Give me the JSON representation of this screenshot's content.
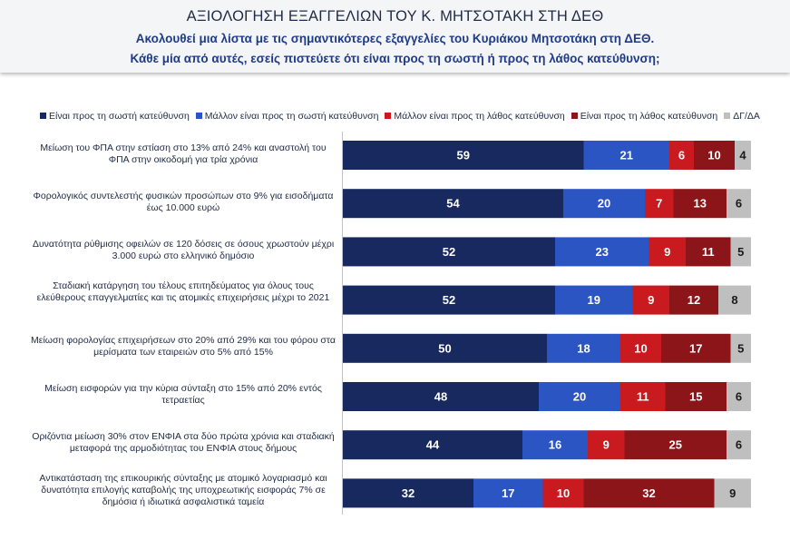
{
  "header": {
    "title": "ΑΞΙΟΛΟΓΗΣΗ ΕΞΑΓΓΕΛΙΩΝ ΤΟΥ Κ. ΜΗΤΣΟΤΑΚΗ ΣΤΗ ΔΕΘ",
    "subtitle_line1": "Ακολουθεί μια λίστα με τις σημαντικότερες εξαγγελίες του Κυριάκου Μητσοτάκη στη ΔΕΘ.",
    "subtitle_line2": "Κάθε μία από αυτές, εσείς πιστεύετε ότι είναι προς τη σωστή ή προς τη λάθος κατεύθυνση;"
  },
  "chart_data": {
    "type": "bar",
    "orientation": "horizontal",
    "stacked": true,
    "legend_position": "top",
    "xlim": [
      0,
      100
    ],
    "categories": [
      "Μείωση του ΦΠΑ στην εστίαση στο 13% από 24% και αναστολή του ΦΠΑ στην οικοδομή για τρία χρόνια",
      "Φορολογικός συντελεστής φυσικών προσώπων στο 9% για εισοδήματα έως 10.000 ευρώ",
      "Δυνατότητα ρύθμισης οφειλών σε 120 δόσεις σε όσους χρωστούν μέχρι 3.000 ευρώ στο ελληνικό δημόσιο",
      "Σταδιακή κατάργηση του τέλους επιτηδεύματος για όλους τους ελεύθερους επαγγελματίες και τις ατομικές επιχειρήσεις μέχρι το 2021",
      "Μείωση φορολογίας επιχειρήσεων στο 20% από 29% και του φόρου στα μερίσματα των εταιρειών στο 5% από 15%",
      "Μείωση εισφορών για την κύρια σύνταξη στο 15% από 20% εντός τετραετίας",
      "Οριζόντια μείωση 30% στον ΕΝΦΙΑ στα δύο πρώτα χρόνια και σταδιακή μεταφορά της αρμοδιότητας του ΕΝΦΙΑ στους δήμους",
      "Αντικατάσταση της επικουρικής σύνταξης με ατομικό λογαριασμό και δυνατότητα επιλογής καταβολής της υποχρεωτικής εισφοράς 7% σε δημόσια ή ιδιωτικά ασφαλιστικά ταμεία"
    ],
    "series": [
      {
        "name": "Είναι προς τη σωστή κατεύθυνση",
        "color": "#17295f",
        "text_color": "#ffffff",
        "values": [
          59,
          54,
          52,
          52,
          50,
          48,
          44,
          32
        ]
      },
      {
        "name": "Μάλλον είναι προς τη σωστή κατεύθυνση",
        "color": "#2c55c4",
        "text_color": "#ffffff",
        "values": [
          21,
          20,
          23,
          19,
          18,
          20,
          16,
          17
        ]
      },
      {
        "name": "Μάλλον είναι προς τη λάθος κατεύθυνση",
        "color": "#c81a1f",
        "text_color": "#ffffff",
        "values": [
          6,
          7,
          9,
          9,
          10,
          11,
          9,
          10
        ]
      },
      {
        "name": "Είναι προς τη λάθος κατεύθυνση",
        "color": "#8b1518",
        "text_color": "#ffffff",
        "values": [
          10,
          13,
          11,
          12,
          17,
          15,
          25,
          32
        ]
      },
      {
        "name": "ΔΓ/ΔΑ",
        "color": "#bfbfbf",
        "text_color": "#1a1a1a",
        "values": [
          4,
          6,
          5,
          8,
          5,
          6,
          6,
          9
        ]
      }
    ]
  }
}
